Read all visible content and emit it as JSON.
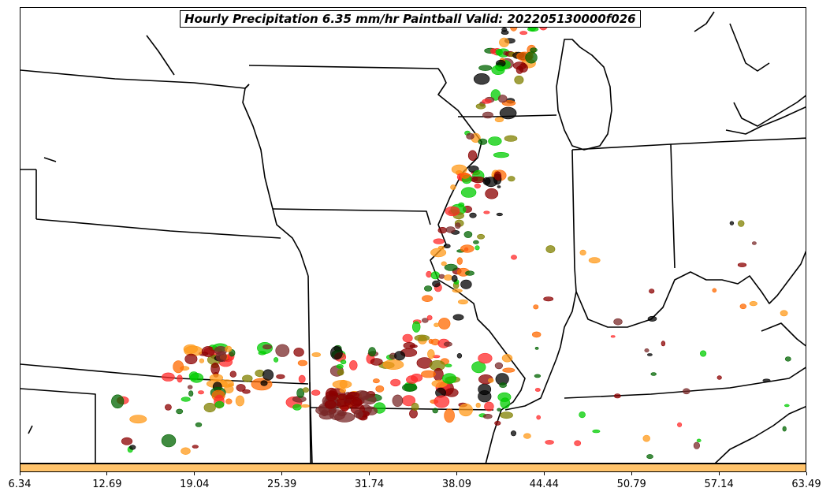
{
  "title": "Hourly Precipitation 6.35 mm/hr Paintball Valid: 202205130000f026",
  "colorbar": {
    "color": "#ffc36b",
    "tick_labels": [
      "6.34",
      "12.69",
      "19.04",
      "25.39",
      "31.74",
      "38.09",
      "44.44",
      "50.79",
      "57.14",
      "63.49"
    ]
  },
  "colors": {
    "border": "#000000",
    "paintball": [
      "#8b0000",
      "#7a2a2a",
      "#ff2a2a",
      "#ff6a00",
      "#ff9a1a",
      "#808000",
      "#00cc00",
      "#006400",
      "#000000"
    ]
  }
}
